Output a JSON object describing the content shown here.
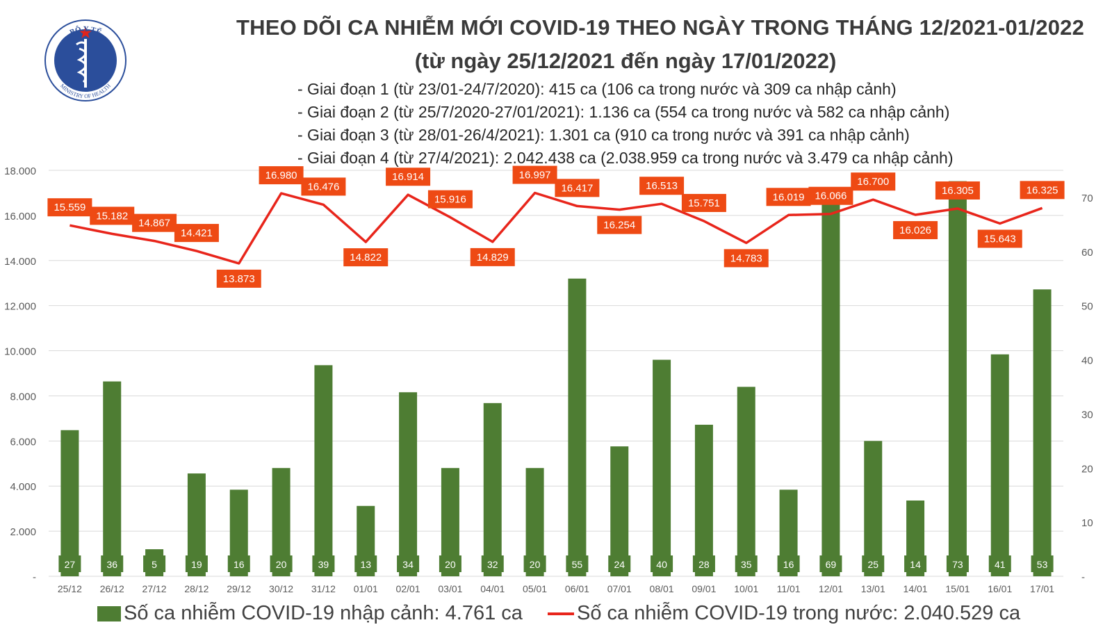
{
  "title": "THEO DÕI CA NHIỄM MỚI COVID-19 THEO NGÀY TRONG THÁNG 12/2021-01/2022",
  "subtitle": "(từ ngày 25/12/2021 đến ngày 17/01/2022)",
  "phases": [
    "- Giai đoạn 1 (từ 23/01-24/7/2020): 415 ca (106 ca trong nước và 309 ca nhập cảnh)",
    "- Giai đoạn 2 (từ 25/7/2020-27/01/2021): 1.136 ca (554 ca trong nước và 582 ca nhập cảnh)",
    "- Giai đoạn 3 (từ 28/01-26/4/2021): 1.301 ca (910 ca trong nước và 391 ca nhập cảnh)",
    "- Giai đoạn 4 (từ 27/4/2021): 2.042.438 ca (2.038.959 ca trong nước và 3.479 ca nhập cảnh)"
  ],
  "logo": {
    "top_text": "BỘ Y TẾ",
    "bottom_text": "MINISTRY OF HEALTH"
  },
  "colors": {
    "bar": "#4e7d33",
    "line": "#e8251b",
    "label_bg": "#ee4a14",
    "grid": "#d9d9d9"
  },
  "chart_data": {
    "type": "bar+line",
    "categories": [
      "25/12",
      "26/12",
      "27/12",
      "28/12",
      "29/12",
      "30/12",
      "31/12",
      "01/01",
      "02/01",
      "03/01",
      "04/01",
      "05/01",
      "06/01",
      "07/01",
      "08/01",
      "09/01",
      "10/01",
      "11/01",
      "12/01",
      "13/01",
      "14/01",
      "15/01",
      "16/01",
      "17/01"
    ],
    "series": [
      {
        "name": "Số ca nhiễm COVID-19 nhập cảnh: 4.761 ca",
        "type": "bar",
        "axis": "right",
        "values": [
          27,
          36,
          5,
          19,
          16,
          20,
          39,
          13,
          34,
          20,
          32,
          20,
          55,
          24,
          40,
          28,
          35,
          16,
          69,
          25,
          14,
          73,
          41,
          53
        ]
      },
      {
        "name": "Số ca nhiễm COVID-19 trong nước: 2.040.529 ca",
        "type": "line",
        "axis": "left",
        "values": [
          15559,
          15182,
          14867,
          14421,
          13873,
          16980,
          16476,
          14822,
          16914,
          15916,
          14829,
          16997,
          16417,
          16254,
          16513,
          15751,
          14783,
          16019,
          16066,
          16700,
          16026,
          16305,
          15643,
          16325
        ],
        "labels": [
          "15.559",
          "15.182",
          "14.867",
          "14.421",
          "13.873",
          "16.980",
          "16.476",
          "14.822",
          "16.914",
          "15.916",
          "14.829",
          "16.997",
          "16.417",
          "16.254",
          "16.513",
          "15.751",
          "14.783",
          "16.019",
          "16.066",
          "16.700",
          "16.026",
          "16.305",
          "15.643",
          "16.325"
        ]
      }
    ],
    "y_left": {
      "range": [
        0,
        18000
      ],
      "ticks": [
        "-",
        "2.000",
        "4.000",
        "6.000",
        "8.000",
        "10.000",
        "12.000",
        "14.000",
        "16.000",
        "18.000"
      ]
    },
    "y_right": {
      "range": [
        0,
        75
      ],
      "ticks": [
        "-",
        "10",
        "20",
        "30",
        "40",
        "50",
        "60",
        "70"
      ]
    },
    "grid": true,
    "legend_position": "bottom"
  }
}
